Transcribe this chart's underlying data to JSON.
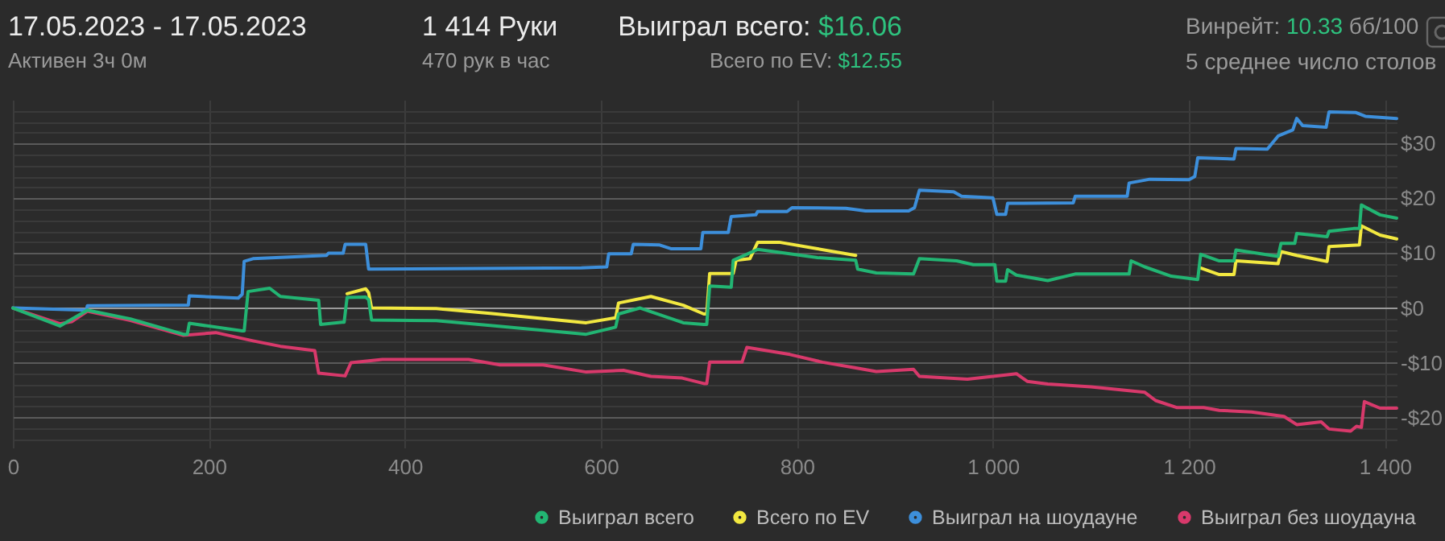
{
  "chart_data": {
    "type": "line",
    "annotations": [
      "17.05.2023 - 17.05.2023",
      "Активен 3ч 0м",
      "1 414 Руки",
      "470 рук в час",
      "Выиграл всего: $16.06",
      "Всего по EV: $12.55",
      "Винрейт: 10.33 бб/100",
      "5 среднее число столов"
    ],
    "xlim": [
      0,
      1412
    ],
    "ylim": [
      -25.5,
      38
    ],
    "xticks": [
      0,
      200,
      400,
      600,
      800,
      {
        "value": 1000,
        "label": "1 000"
      },
      {
        "value": 1200,
        "label": "1 200"
      },
      {
        "value": 1400,
        "label": "1 400"
      }
    ],
    "yticks": [
      {
        "value": -24,
        "label": null
      },
      {
        "value": -22,
        "label": null
      },
      {
        "value": -20,
        "label": "-$20"
      },
      {
        "value": -18,
        "label": null
      },
      {
        "value": -16,
        "label": null
      },
      {
        "value": -14,
        "label": null
      },
      {
        "value": -12,
        "label": null
      },
      {
        "value": -10,
        "label": "-$10"
      },
      {
        "value": -8,
        "label": null
      },
      {
        "value": -6,
        "label": null
      },
      {
        "value": -4,
        "label": null
      },
      {
        "value": -2,
        "label": null
      },
      {
        "value": 0,
        "label": "$0"
      },
      {
        "value": 2,
        "label": null
      },
      {
        "value": 4,
        "label": null
      },
      {
        "value": 6,
        "label": null
      },
      {
        "value": 8,
        "label": null
      },
      {
        "value": 10,
        "label": "$10"
      },
      {
        "value": 12,
        "label": null
      },
      {
        "value": 14,
        "label": null
      },
      {
        "value": 16,
        "label": null
      },
      {
        "value": 18,
        "label": null
      },
      {
        "value": 20,
        "label": "$20"
      },
      {
        "value": 22,
        "label": null
      },
      {
        "value": 24,
        "label": null
      },
      {
        "value": 26,
        "label": null
      },
      {
        "value": 28,
        "label": null
      },
      {
        "value": 30,
        "label": "$30"
      },
      {
        "value": 32,
        "label": null
      },
      {
        "value": 34,
        "label": null
      },
      {
        "value": 36,
        "label": null
      }
    ],
    "grid": true,
    "legend": "bottom right",
    "marker": "none",
    "series": [
      {
        "name": "Выиграл всего",
        "color": "#22b573",
        "x": [
          0,
          48,
          76,
          120,
          174,
          178,
          180,
          234,
          236,
          240,
          262,
          273,
          312,
          314,
          336,
          338,
          341,
          360,
          363,
          366,
          432,
          487,
          585,
          615,
          618,
          640,
          684,
          705,
          708,
          711,
          733,
          735,
          760,
          821,
          860,
          862,
          881,
          919,
          925,
          963,
          980,
          1002,
          1004,
          1013,
          1015,
          1024,
          1056,
          1084,
          1139,
          1141,
          1155,
          1182,
          1209,
          1212,
          1231,
          1246,
          1248,
          1291,
          1294,
          1308,
          1310,
          1341,
          1343,
          1368,
          1374,
          1376,
          1395,
          1412
        ],
        "values": [
          0,
          -3.3,
          -0.4,
          -2,
          -4.8,
          -4.8,
          -2.8,
          -4.2,
          -4.2,
          3,
          3.6,
          2.1,
          1.4,
          -3,
          -2.6,
          -2.6,
          1.9,
          2,
          1.5,
          -2.2,
          -2.3,
          -3.2,
          -4.8,
          -3.5,
          -1.1,
          0,
          -2.7,
          -3,
          -3,
          4,
          3.8,
          8.7,
          10.7,
          9.2,
          8.7,
          7.1,
          6.4,
          6.2,
          9,
          8.6,
          7.9,
          7.9,
          4.9,
          4.9,
          7,
          6,
          5,
          6.2,
          6.2,
          8.6,
          7.5,
          5.8,
          5.2,
          9.8,
          8.6,
          8.6,
          10.6,
          9.4,
          11.8,
          11.8,
          13.6,
          13,
          14,
          14.5,
          14.5,
          18.8,
          17,
          16.4
        ]
      },
      {
        "name": "Всего по EV",
        "color": "#f2e840",
        "x": [
          341,
          360,
          363,
          366,
          432,
          487,
          585,
          615,
          618,
          651,
          684,
          705,
          708,
          711,
          735,
          738,
          752,
          760,
          782,
          821,
          860,
          1000,
          1212,
          1231,
          1246,
          1248,
          1291,
          1294,
          1310,
          1341,
          1343,
          1374,
          1376,
          1395,
          1412
        ],
        "values": [
          2.6,
          3.5,
          2.8,
          0,
          -0.1,
          -1,
          -2.7,
          -1.8,
          0.9,
          2.1,
          0.5,
          -1.1,
          -1.1,
          6.3,
          6.3,
          8.7,
          9,
          12,
          12,
          10.8,
          9.6,
          null,
          7.3,
          6.1,
          6.1,
          8.6,
          8.1,
          10.3,
          9.6,
          8.5,
          11.2,
          11.5,
          15,
          13.3,
          12.6
        ]
      },
      {
        "name": "Выиграл на шоудауне",
        "color": "#3d8fdb",
        "x": [
          0,
          75,
          76,
          179,
          180,
          230,
          234,
          236,
          245,
          320,
          322,
          337,
          339,
          360,
          363,
          580,
          590,
          606,
          608,
          631,
          633,
          660,
          672,
          702,
          704,
          730,
          733,
          758,
          760,
          790,
          795,
          850,
          870,
          914,
          920,
          925,
          960,
          968,
          1000,
          1004,
          1013,
          1015,
          1082,
          1084,
          1137,
          1139,
          1160,
          1200,
          1206,
          1209,
          1246,
          1248,
          1280,
          1291,
          1306,
          1310,
          1316,
          1340,
          1343,
          1370,
          1380,
          1412
        ],
        "values": [
          0,
          -0.4,
          0.4,
          0.5,
          2.2,
          1.8,
          2.5,
          8.5,
          9,
          9.6,
          10,
          10,
          11.6,
          11.6,
          7.1,
          7.3,
          7.4,
          7.5,
          9.9,
          9.9,
          11.6,
          11.5,
          10.8,
          10.8,
          13.8,
          13.8,
          16.7,
          17,
          17.6,
          17.6,
          18.3,
          18.2,
          17.7,
          17.7,
          18.3,
          21.5,
          21.2,
          20.4,
          20.1,
          17.1,
          17.1,
          19.1,
          19.2,
          20.4,
          20.4,
          22.8,
          23.5,
          23.4,
          24,
          27.4,
          27.2,
          29.1,
          29,
          31.4,
          32.5,
          34.6,
          33.3,
          33,
          35.8,
          35.7,
          35,
          34.6
        ]
      },
      {
        "name": "Выиграл без шоудауна",
        "color": "#d8396b",
        "x": [
          0,
          48,
          60,
          76,
          120,
          174,
          207,
          245,
          273,
          308,
          312,
          339,
          345,
          377,
          465,
          497,
          541,
          585,
          623,
          651,
          683,
          705,
          708,
          711,
          744,
          749,
          793,
          826,
          859,
          881,
          919,
          925,
          974,
          1024,
          1035,
          1056,
          1100,
          1155,
          1166,
          1188,
          1215,
          1231,
          1264,
          1297,
          1310,
          1335,
          1343,
          1365,
          1371,
          1376,
          1379,
          1395,
          1412
        ],
        "values": [
          0,
          -2.9,
          -2.5,
          -0.6,
          -2.3,
          -5,
          -4.5,
          -6,
          -7,
          -7.8,
          -11.9,
          -12.4,
          -10,
          -9.4,
          -9.4,
          -10.4,
          -10.4,
          -11.7,
          -11.4,
          -12.5,
          -12.8,
          -13.8,
          -13.8,
          -9.9,
          -9.9,
          -7.2,
          -8.5,
          -9.9,
          -10.9,
          -11.6,
          -11.2,
          -12.5,
          -13,
          -12,
          -13.4,
          -13.9,
          -14.4,
          -15.4,
          -16.9,
          -18.2,
          -18.2,
          -18.7,
          -19,
          -19.8,
          -21.3,
          -20.8,
          -22.1,
          -22.5,
          -21.6,
          -21.8,
          -17.1,
          -18.3,
          -18.3
        ]
      }
    ]
  }
}
